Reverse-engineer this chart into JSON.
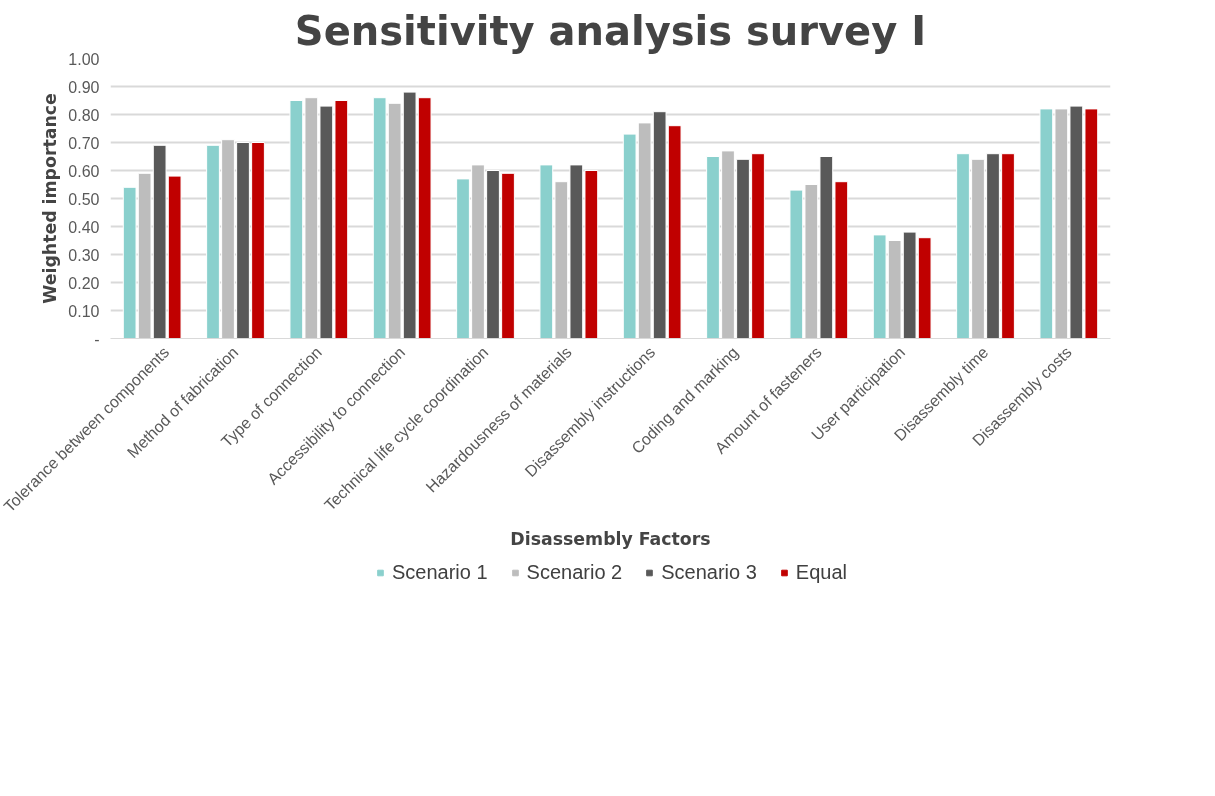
{
  "chart_data": {
    "type": "bar",
    "title": "Sensitivity analysis survey I",
    "xlabel": "Disassembly Factors",
    "ylabel": "Weighted importance",
    "categories": [
      "Tolerance between components",
      "Method of fabrication",
      "Type of connection",
      "Accessibility to connection",
      "Technical life cycle coordination",
      "Hazardousness of materials",
      "Disassembly instructions",
      "Coding and marking",
      "Amount of fasteners",
      "User participation",
      "Disassembly time",
      "Disassembly costs"
    ],
    "series": [
      {
        "name": "Scenario 1",
        "color": "#8ad0cd",
        "values": [
          0.54,
          0.69,
          0.85,
          0.86,
          0.57,
          0.62,
          0.73,
          0.65,
          0.53,
          0.37,
          0.66,
          0.82
        ]
      },
      {
        "name": "Scenario 2",
        "color": "#bdbdbd",
        "values": [
          0.59,
          0.71,
          0.86,
          0.84,
          0.62,
          0.56,
          0.77,
          0.67,
          0.55,
          0.35,
          0.64,
          0.82
        ]
      },
      {
        "name": "Scenario 3",
        "color": "#595959",
        "values": [
          0.69,
          0.7,
          0.83,
          0.88,
          0.6,
          0.62,
          0.81,
          0.64,
          0.65,
          0.38,
          0.66,
          0.83
        ]
      },
      {
        "name": "Equal",
        "color": "#c00000",
        "values": [
          0.58,
          0.7,
          0.85,
          0.86,
          0.59,
          0.6,
          0.76,
          0.66,
          0.56,
          0.36,
          0.66,
          0.82
        ]
      }
    ],
    "ylim": [
      0,
      1.0
    ],
    "yticks": [
      {
        "value": 0,
        "label": "-"
      },
      {
        "value": 0.1,
        "label": "0.10"
      },
      {
        "value": 0.2,
        "label": "0.20"
      },
      {
        "value": 0.3,
        "label": "0.30"
      },
      {
        "value": 0.4,
        "label": "0.40"
      },
      {
        "value": 0.5,
        "label": "0.50"
      },
      {
        "value": 0.6,
        "label": "0.60"
      },
      {
        "value": 0.7,
        "label": "0.70"
      },
      {
        "value": 0.8,
        "label": "0.80"
      },
      {
        "value": 0.9,
        "label": "0.90"
      },
      {
        "value": 1.0,
        "label": "1.00"
      }
    ],
    "grid": "y",
    "legend": "bottom"
  }
}
